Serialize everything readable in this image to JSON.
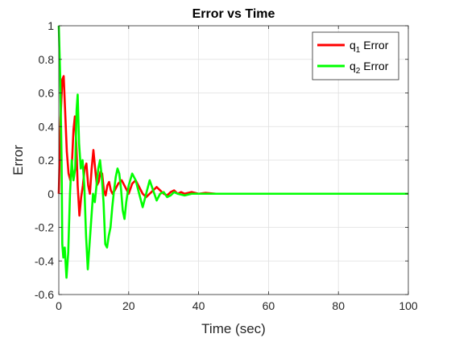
{
  "chart_data": {
    "type": "line",
    "title": "Error vs Time",
    "xlabel": "Time (sec)",
    "ylabel": "Error",
    "xlim": [
      0,
      100
    ],
    "ylim": [
      -0.6,
      1
    ],
    "xticks": [
      0,
      20,
      40,
      60,
      80,
      100
    ],
    "yticks": [
      -0.6,
      -0.4,
      -0.2,
      0,
      0.2,
      0.4,
      0.6,
      0.8,
      1
    ],
    "xtick_labels": [
      "0",
      "20",
      "40",
      "60",
      "80",
      "100"
    ],
    "ytick_labels": [
      "-0.6",
      "-0.4",
      "-0.2",
      "0",
      "0.2",
      "0.4",
      "0.6",
      "0.8",
      "1"
    ],
    "grid": true,
    "legend_position": "top-right",
    "series": [
      {
        "name": "q1 Error",
        "legend_base": "q",
        "legend_sub": "1",
        "legend_rest": " Error",
        "color": "#ff0000",
        "points": [
          [
            0,
            0
          ],
          [
            0.5,
            0.45
          ],
          [
            1,
            0.68
          ],
          [
            1.4,
            0.7
          ],
          [
            1.8,
            0.5
          ],
          [
            2.3,
            0.25
          ],
          [
            2.8,
            0.12
          ],
          [
            3.3,
            0.08
          ],
          [
            3.7,
            0.15
          ],
          [
            4.2,
            0.38
          ],
          [
            4.6,
            0.46
          ],
          [
            5.0,
            0.3
          ],
          [
            5.4,
            0.05
          ],
          [
            5.9,
            -0.13
          ],
          [
            6.4,
            -0.02
          ],
          [
            6.9,
            0.05
          ],
          [
            7.4,
            0.15
          ],
          [
            7.9,
            0.18
          ],
          [
            8.4,
            0.05
          ],
          [
            8.9,
            0.0
          ],
          [
            9.4,
            0.15
          ],
          [
            9.9,
            0.26
          ],
          [
            10.4,
            0.15
          ],
          [
            10.9,
            0.05
          ],
          [
            11.4,
            0.07
          ],
          [
            11.9,
            0.13
          ],
          [
            12.4,
            0.12
          ],
          [
            12.9,
            0.02
          ],
          [
            13.4,
            -0.01
          ],
          [
            13.9,
            0.05
          ],
          [
            14.4,
            0.07
          ],
          [
            14.9,
            0.02
          ],
          [
            15.4,
            0.0
          ],
          [
            16,
            0.02
          ],
          [
            17,
            0.06
          ],
          [
            18,
            0.08
          ],
          [
            19,
            0.04
          ],
          [
            20,
            0.0
          ],
          [
            21,
            0.06
          ],
          [
            22,
            0.08
          ],
          [
            23,
            0.04
          ],
          [
            24,
            0.0
          ],
          [
            25,
            -0.02
          ],
          [
            26,
            0.0
          ],
          [
            27,
            0.02
          ],
          [
            28,
            0.04
          ],
          [
            29,
            0.02
          ],
          [
            30,
            0.0
          ],
          [
            31,
            -0.01
          ],
          [
            32,
            0.01
          ],
          [
            33,
            0.02
          ],
          [
            34,
            0.0
          ],
          [
            35,
            0.01
          ],
          [
            36,
            0.0
          ],
          [
            38,
            0.01
          ],
          [
            40,
            0.0
          ],
          [
            42,
            0.005
          ],
          [
            45,
            0
          ],
          [
            60,
            0
          ],
          [
            80,
            0
          ],
          [
            100,
            0
          ]
        ]
      },
      {
        "name": "q2 Error",
        "legend_base": "q",
        "legend_sub": "2",
        "legend_rest": " Error",
        "color": "#00ff00",
        "points": [
          [
            0,
            1
          ],
          [
            0.4,
            0.7
          ],
          [
            0.8,
            0.2
          ],
          [
            1.0,
            -0.3
          ],
          [
            1.3,
            -0.38
          ],
          [
            1.7,
            -0.32
          ],
          [
            2.2,
            -0.5
          ],
          [
            2.7,
            -0.35
          ],
          [
            3.2,
            0.0
          ],
          [
            3.7,
            0.2
          ],
          [
            4.2,
            0.08
          ],
          [
            4.7,
            0.15
          ],
          [
            5.1,
            0.5
          ],
          [
            5.4,
            0.59
          ],
          [
            5.8,
            0.3
          ],
          [
            6.3,
            0.15
          ],
          [
            6.8,
            0.2
          ],
          [
            7.3,
            0.05
          ],
          [
            7.8,
            -0.25
          ],
          [
            8.3,
            -0.45
          ],
          [
            8.8,
            -0.3
          ],
          [
            9.3,
            -0.15
          ],
          [
            9.8,
            0.0
          ],
          [
            10.3,
            -0.05
          ],
          [
            10.8,
            0.05
          ],
          [
            11.3,
            0.15
          ],
          [
            11.8,
            0.2
          ],
          [
            12.3,
            0.1
          ],
          [
            12.8,
            -0.05
          ],
          [
            13.3,
            -0.3
          ],
          [
            13.8,
            -0.32
          ],
          [
            14.3,
            -0.25
          ],
          [
            14.8,
            -0.2
          ],
          [
            15.3,
            -0.08
          ],
          [
            15.8,
            0.02
          ],
          [
            16.3,
            0.1
          ],
          [
            16.8,
            0.15
          ],
          [
            17.3,
            0.12
          ],
          [
            17.8,
            0.03
          ],
          [
            18.3,
            -0.1
          ],
          [
            18.8,
            -0.15
          ],
          [
            19.3,
            -0.05
          ],
          [
            20,
            0.05
          ],
          [
            21,
            0.12
          ],
          [
            22,
            0.08
          ],
          [
            23,
            0.0
          ],
          [
            24,
            -0.08
          ],
          [
            25,
            0.0
          ],
          [
            26,
            0.08
          ],
          [
            27,
            0.02
          ],
          [
            28,
            -0.04
          ],
          [
            29,
            0.0
          ],
          [
            30,
            0.01
          ],
          [
            31,
            -0.02
          ],
          [
            32,
            -0.01
          ],
          [
            33,
            0.01
          ],
          [
            34,
            0.0
          ],
          [
            36,
            -0.01
          ],
          [
            38,
            0.0
          ],
          [
            40,
            0.0
          ],
          [
            45,
            0
          ],
          [
            60,
            0
          ],
          [
            80,
            0
          ],
          [
            100,
            0
          ]
        ]
      }
    ]
  }
}
